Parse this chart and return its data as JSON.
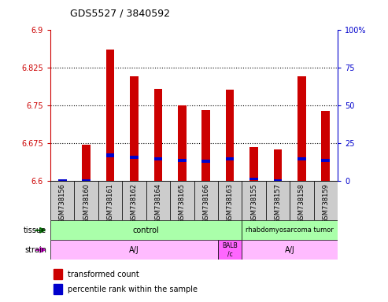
{
  "title": "GDS5527 / 3840592",
  "samples": [
    "GSM738156",
    "GSM738160",
    "GSM738161",
    "GSM738162",
    "GSM738164",
    "GSM738165",
    "GSM738166",
    "GSM738163",
    "GSM738155",
    "GSM738157",
    "GSM738158",
    "GSM738159"
  ],
  "red_values": [
    6.603,
    6.672,
    6.862,
    6.808,
    6.783,
    6.75,
    6.742,
    6.782,
    6.668,
    6.663,
    6.808,
    6.74
  ],
  "blue_bottom": [
    6.6,
    6.601,
    6.648,
    6.644,
    6.641,
    6.638,
    6.636,
    6.641,
    6.602,
    6.601,
    6.641,
    6.638
  ],
  "blue_top": [
    6.603,
    6.604,
    6.655,
    6.651,
    6.648,
    6.645,
    6.643,
    6.648,
    6.607,
    6.604,
    6.648,
    6.645
  ],
  "ymin": 6.6,
  "ymax": 6.9,
  "yticks": [
    6.6,
    6.675,
    6.75,
    6.825,
    6.9
  ],
  "y2ticks": [
    0,
    25,
    50,
    75,
    100
  ],
  "bar_color": "#cc0000",
  "blue_color": "#0000cc",
  "bg_color": "#cccccc",
  "left_tick_color": "#cc0000",
  "right_tick_color": "#0000cc",
  "tissue_green": "#aaffaa",
  "strain_pink": "#ffbbff",
  "strain_dark_pink": "#ff66ff",
  "bar_width": 0.35
}
